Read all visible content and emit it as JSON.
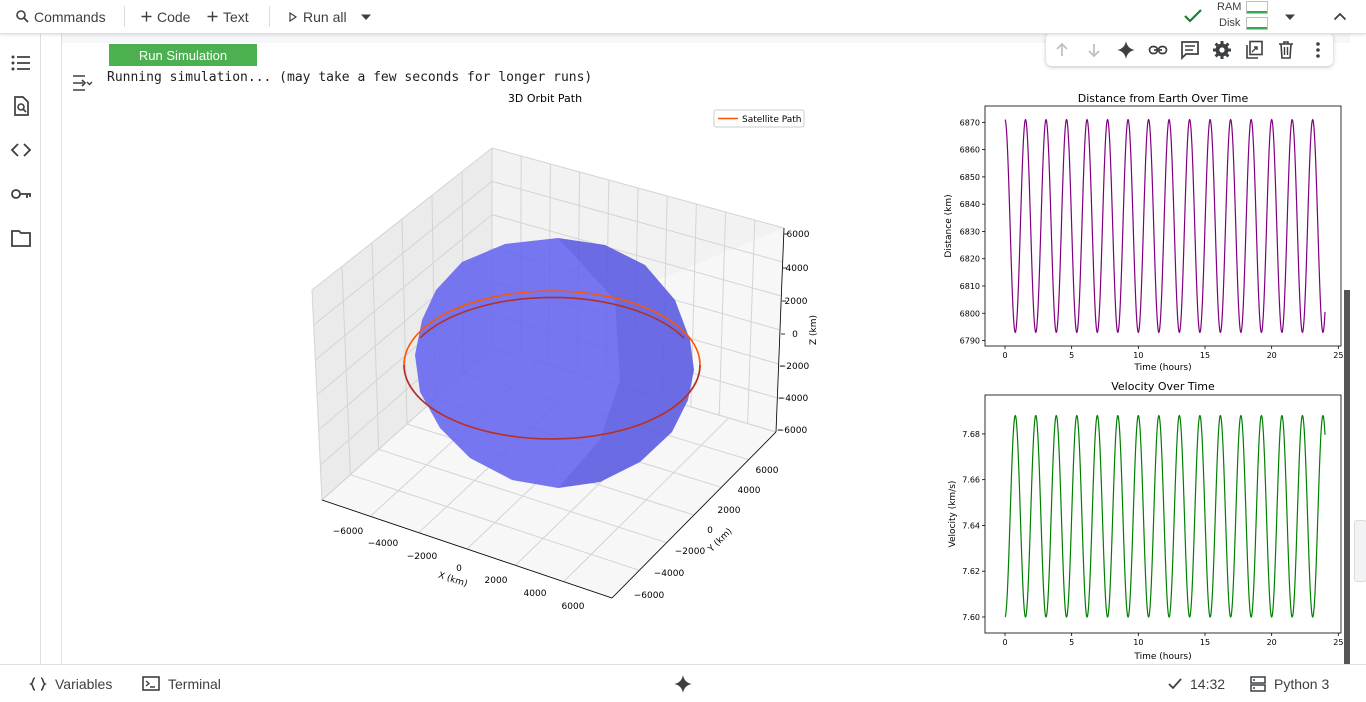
{
  "toolbar": {
    "commands": "Commands",
    "code": "Code",
    "text": "Text",
    "run_all": "Run all",
    "ram": "RAM",
    "disk": "Disk"
  },
  "cell": {
    "run_button": "Run Simulation",
    "output": "Running simulation... (may take a few seconds for longer runs)"
  },
  "status": {
    "variables": "Variables",
    "terminal": "Terminal",
    "time": "14:32",
    "runtime": "Python 3"
  },
  "colors": {
    "accent_green": "#4caf50",
    "orbit": "#ff5500",
    "earth": "#6464f0",
    "distance_line": "#800080",
    "velocity_line": "#008000"
  },
  "chart_data": [
    {
      "type": "line",
      "projection": "3d",
      "title": "3D Orbit Path",
      "xlabel": "X (km)",
      "ylabel": "Y (km)",
      "zlabel": "Z (km)",
      "x_ticks": [
        "−6000",
        "−4000",
        "−2000",
        "0",
        "2000",
        "4000",
        "6000"
      ],
      "y_ticks": [
        "−6000",
        "−4000",
        "−2000",
        "0",
        "2000",
        "4000",
        "6000"
      ],
      "z_ticks": [
        "−6000",
        "−4000",
        "−2000",
        "0",
        "2000",
        "4000",
        "6000"
      ],
      "legend": [
        "Satellite Path"
      ],
      "legend_position": "top-right",
      "series": [
        {
          "name": "Satellite Path",
          "orbit_radius_km": 6800
        }
      ],
      "sphere_radius_km": 6371
    },
    {
      "type": "line",
      "title": "Distance from Earth Over Time",
      "xlabel": "Time (hours)",
      "ylabel": "Distance (km)",
      "xlim": [
        -1.5,
        25.2
      ],
      "ylim": [
        6788,
        6876
      ],
      "x_ticks": [
        "0",
        "5",
        "10",
        "15",
        "20",
        "25"
      ],
      "y_ticks": [
        "6790",
        "6800",
        "6810",
        "6820",
        "6830",
        "6840",
        "6850",
        "6860",
        "6870"
      ],
      "t_end": 24,
      "cycles": 15.6,
      "min": 6793,
      "max": 6871,
      "start_phase": "max"
    },
    {
      "type": "line",
      "title": "Velocity Over Time",
      "xlabel": "Time (hours)",
      "ylabel": "Velocity (km/s)",
      "xlim": [
        -1.5,
        25.2
      ],
      "ylim": [
        7.593,
        7.697
      ],
      "x_ticks": [
        "0",
        "5",
        "10",
        "15",
        "20",
        "25"
      ],
      "y_ticks": [
        "7.60",
        "7.62",
        "7.64",
        "7.66",
        "7.68"
      ],
      "t_end": 24,
      "cycles": 15.6,
      "min": 7.6,
      "max": 7.688,
      "start_phase": "min"
    }
  ]
}
